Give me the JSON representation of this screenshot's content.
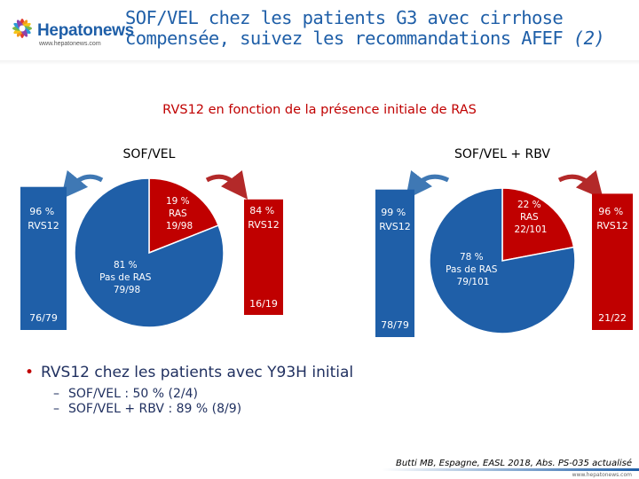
{
  "logo": {
    "name": "Hepatonews",
    "url": "www.hepatonews.com"
  },
  "title": {
    "text": "SOF/VEL chez les patients G3 avec cirrhose compensée, suivez les recommandations AFEF",
    "suffix": "(2)"
  },
  "chart_data": {
    "type": "pie",
    "title": "RVS12 en fonction de la présence initiale de RAS",
    "colors": {
      "blue": "#1f5fa8",
      "red": "#c00000",
      "arrow_blue": "#3f78b4",
      "arrow_red": "#b32929"
    },
    "groups": [
      {
        "name": "SOF/VEL",
        "slices": [
          {
            "label": "19 %",
            "sub1": "RAS",
            "sub2": "19/98",
            "value": 19,
            "color": "red"
          },
          {
            "label": "81 %",
            "sub1": "Pas de RAS",
            "sub2": "79/98",
            "value": 81,
            "color": "blue"
          }
        ],
        "bars": [
          {
            "label": "96 %",
            "sub": "RVS12",
            "count": "76/79",
            "value": 96,
            "color": "blue"
          },
          {
            "label": "84 %",
            "sub": "RVS12",
            "count": "16/19",
            "value": 84,
            "color": "red"
          }
        ]
      },
      {
        "name": "SOF/VEL + RBV",
        "slices": [
          {
            "label": "22 %",
            "sub1": "RAS",
            "sub2": "22/101",
            "value": 22,
            "color": "red"
          },
          {
            "label": "78 %",
            "sub1": "Pas de RAS",
            "sub2": "79/101",
            "value": 78,
            "color": "blue"
          }
        ],
        "bars": [
          {
            "label": "99 %",
            "sub": "RVS12",
            "count": "78/79",
            "value": 99,
            "color": "blue"
          },
          {
            "label": "96 %",
            "sub": "RVS12",
            "count": "21/22",
            "value": 96,
            "color": "red"
          }
        ]
      }
    ]
  },
  "bullets": {
    "main": "RVS12 chez les patients avec Y93H initial",
    "items": [
      "SOF/VEL : 50 % (2/4)",
      "SOF/VEL + RBV : 89 % (8/9)"
    ]
  },
  "citation": "Butti MB, Espagne, EASL 2018, Abs. PS-035 actualisé",
  "footer_url": "www.hepatonews.com"
}
